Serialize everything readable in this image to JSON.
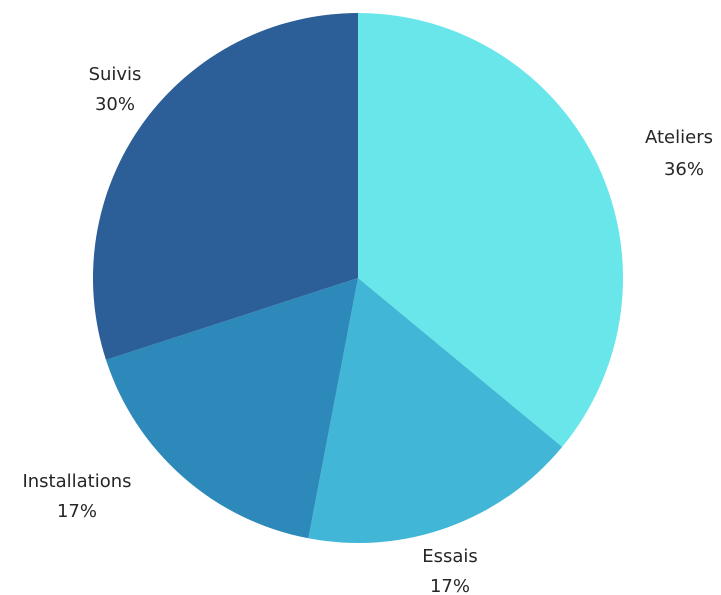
{
  "chart_data": {
    "type": "pie",
    "title": "",
    "start": "top",
    "direction": "clockwise",
    "slices": [
      {
        "label": "Ateliers",
        "value": 36,
        "value_label": "36%",
        "color": "#69E6EA"
      },
      {
        "label": "Essais",
        "value": 17,
        "value_label": "17%",
        "color": "#41B6D6"
      },
      {
        "label": "Installations",
        "value": 17,
        "value_label": "17%",
        "color": "#2D89BA"
      },
      {
        "label": "Suivis",
        "value": 30,
        "value_label": "30%",
        "color": "#2C5E97"
      }
    ]
  }
}
